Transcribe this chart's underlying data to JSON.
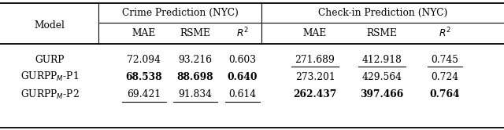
{
  "col_groups": [
    "Crime Prediction (NYC)",
    "Check-in Prediction (NYC)"
  ],
  "col_headers": [
    "MAE",
    "RSME",
    "R^2",
    "MAE",
    "RSME",
    "R^2"
  ],
  "row_labels": [
    "GURP",
    "GURPP_M-P1",
    "GURPP_M-P2"
  ],
  "data": [
    [
      "72.094",
      "93.216",
      "0.603",
      "271.689",
      "412.918",
      "0.745"
    ],
    [
      "68.538",
      "88.698",
      "0.640",
      "273.201",
      "429.564",
      "0.724"
    ],
    [
      "69.421",
      "91.834",
      "0.614",
      "262.437",
      "397.466",
      "0.764"
    ]
  ],
  "bold": [
    [
      false,
      false,
      false,
      false,
      false,
      false
    ],
    [
      true,
      true,
      true,
      false,
      false,
      false
    ],
    [
      false,
      false,
      false,
      true,
      true,
      true
    ]
  ],
  "underline": [
    [
      false,
      false,
      false,
      true,
      true,
      true
    ],
    [
      false,
      false,
      false,
      false,
      false,
      false
    ],
    [
      true,
      true,
      true,
      false,
      false,
      false
    ]
  ],
  "bg_color": "#ffffff",
  "font_size": 8.8
}
